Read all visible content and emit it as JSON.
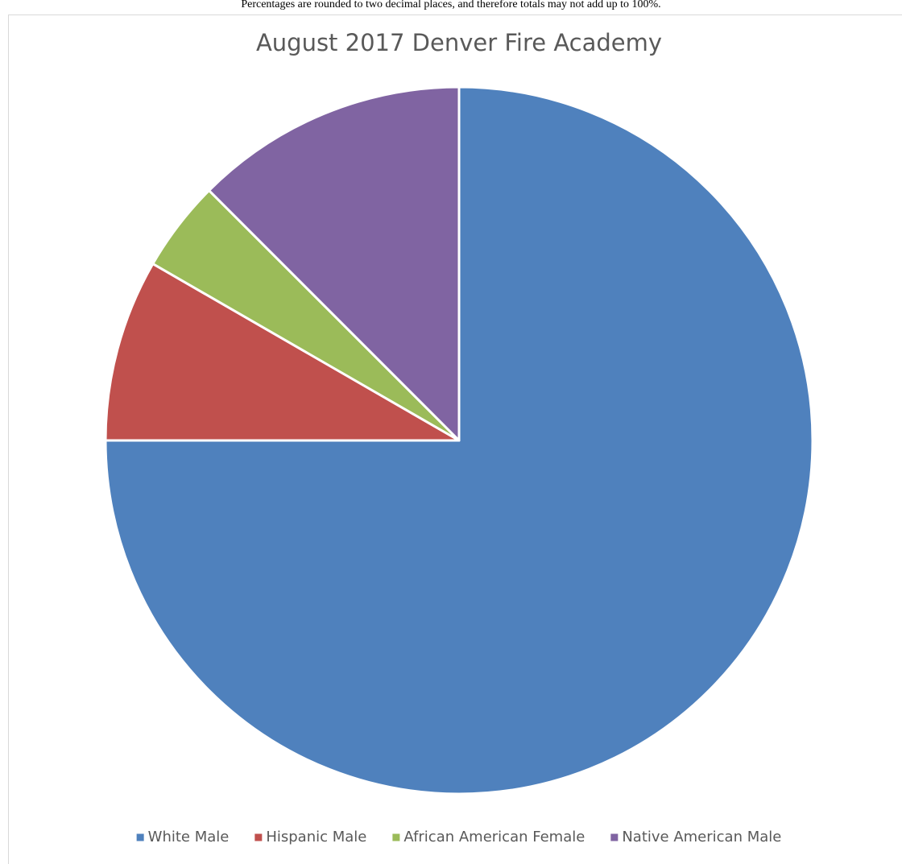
{
  "note": "Percentages are rounded to two decimal places, and therefore totals may not add up to 100%.",
  "chart_data": {
    "type": "pie",
    "title": "August 2017 Denver Fire Academy",
    "categories": [
      "White Male",
      "Hispanic Male",
      "African American Female",
      "Native American Male"
    ],
    "values": [
      75,
      8.33,
      4.17,
      12.5
    ],
    "colors": [
      "#4f81bd",
      "#c0504d",
      "#9bbb59",
      "#8064a2"
    ],
    "legend": "bottom"
  }
}
